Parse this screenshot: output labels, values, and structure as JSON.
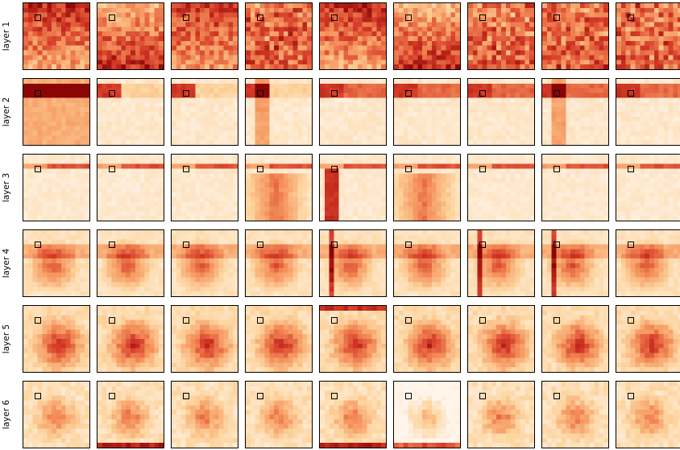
{
  "rows": [
    {
      "label": "layer 1"
    },
    {
      "label": "layer 2"
    },
    {
      "label": "layer 3"
    },
    {
      "label": "layer 4"
    },
    {
      "label": "layer 5"
    },
    {
      "label": "layer 6"
    }
  ],
  "columns_per_row": 9,
  "colormap": "OrRd",
  "colors": {
    "low": "#fff5eb",
    "mid": "#f4a46a",
    "high": "#9e0a0a",
    "frame": "#000000"
  }
}
